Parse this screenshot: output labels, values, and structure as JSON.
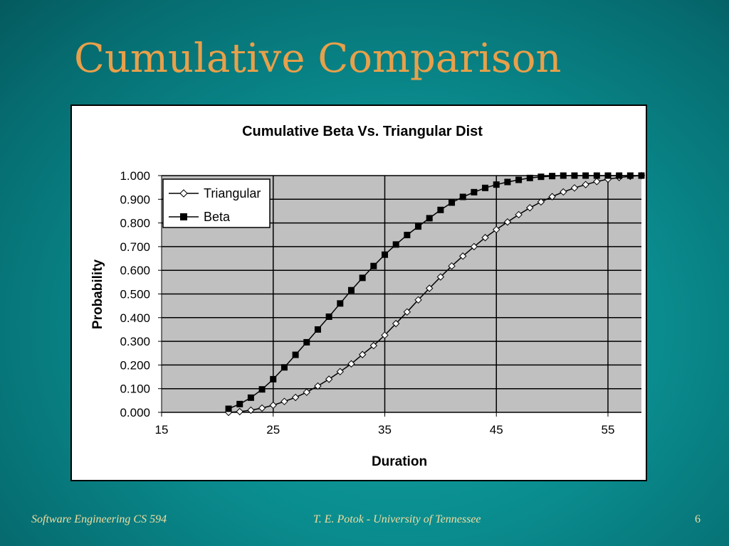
{
  "slide": {
    "title": "Cumulative Comparison",
    "footer_left": "Software Engineering CS 594",
    "footer_center": "T. E. Potok - University of Tennessee",
    "page_number": "6"
  },
  "colors": {
    "title": "#e8a04a",
    "footer": "#f2dda0",
    "plot_area": "#c0c0c0",
    "series": "#000000"
  },
  "chart_data": {
    "type": "line",
    "title": "Cumulative Beta Vs. Triangular Dist",
    "xlabel": "Duration",
    "ylabel": "Probability",
    "xlim": [
      15,
      58
    ],
    "ylim": [
      0,
      1
    ],
    "x_ticks": [
      15,
      25,
      35,
      45,
      55
    ],
    "y_ticks": [
      0,
      0.1,
      0.2,
      0.3,
      0.4,
      0.5,
      0.6,
      0.7,
      0.8,
      0.9,
      1.0
    ],
    "y_tick_labels": [
      "0.000",
      "0.100",
      "0.200",
      "0.300",
      "0.400",
      "0.500",
      "0.600",
      "0.700",
      "0.800",
      "0.900",
      "1.000"
    ],
    "x_tick_labels": [
      "15",
      "25",
      "35",
      "45",
      "55"
    ],
    "grid": "vertical-and-horizontal",
    "legend": "top-left",
    "x": [
      21,
      22,
      23,
      24,
      25,
      26,
      27,
      28,
      29,
      30,
      31,
      32,
      33,
      34,
      35,
      36,
      37,
      38,
      39,
      40,
      41,
      42,
      43,
      44,
      45,
      46,
      47,
      48,
      49,
      50,
      51,
      52,
      53,
      54,
      55,
      56,
      57,
      58
    ],
    "series": [
      {
        "name": "Triangular",
        "marker": "open-diamond",
        "values": [
          0.0,
          0.003,
          0.009,
          0.018,
          0.03,
          0.046,
          0.063,
          0.085,
          0.111,
          0.14,
          0.172,
          0.205,
          0.244,
          0.282,
          0.326,
          0.375,
          0.424,
          0.475,
          0.524,
          0.572,
          0.618,
          0.66,
          0.7,
          0.738,
          0.772,
          0.804,
          0.835,
          0.864,
          0.889,
          0.911,
          0.931,
          0.948,
          0.962,
          0.975,
          0.985,
          0.992,
          0.997,
          1.0
        ]
      },
      {
        "name": "Beta",
        "marker": "filled-square",
        "values": [
          0.015,
          0.035,
          0.062,
          0.097,
          0.14,
          0.19,
          0.243,
          0.296,
          0.35,
          0.404,
          0.46,
          0.516,
          0.568,
          0.618,
          0.666,
          0.709,
          0.749,
          0.785,
          0.82,
          0.855,
          0.886,
          0.91,
          0.93,
          0.948,
          0.962,
          0.973,
          0.982,
          0.99,
          0.995,
          0.998,
          1.0,
          1.0,
          1.0,
          1.0,
          1.0,
          1.0,
          1.0,
          1.0
        ]
      }
    ]
  }
}
